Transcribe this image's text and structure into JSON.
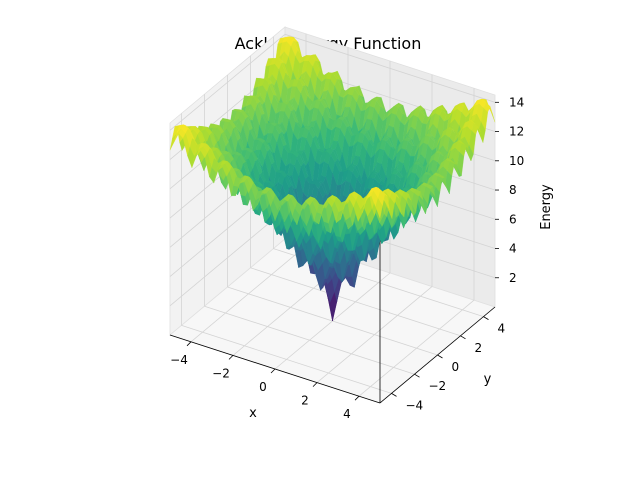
{
  "chart_data": {
    "type": "surface3d",
    "title": "Ackley Energy Function",
    "xlabel": "x",
    "ylabel": "y",
    "zlabel": "Energy",
    "xlim": [
      -5,
      5
    ],
    "ylim": [
      -5,
      5
    ],
    "zlim": [
      0,
      14.5
    ],
    "x_ticks": [
      -4,
      -2,
      0,
      2,
      4
    ],
    "y_ticks": [
      -4,
      -2,
      0,
      2,
      4
    ],
    "z_ticks": [
      2,
      4,
      6,
      8,
      10,
      12,
      14
    ],
    "x_tick_labels": [
      "−4",
      "−2",
      "0",
      "2",
      "4"
    ],
    "y_tick_labels": [
      "−4",
      "−2",
      "0",
      "2",
      "4"
    ],
    "z_tick_labels": [
      "2",
      "4",
      "6",
      "8",
      "10",
      "12",
      "14"
    ],
    "grid": true,
    "colormap": "viridis",
    "function": "ackley",
    "surface_min": 0.0,
    "surface_max": 14.3
  }
}
